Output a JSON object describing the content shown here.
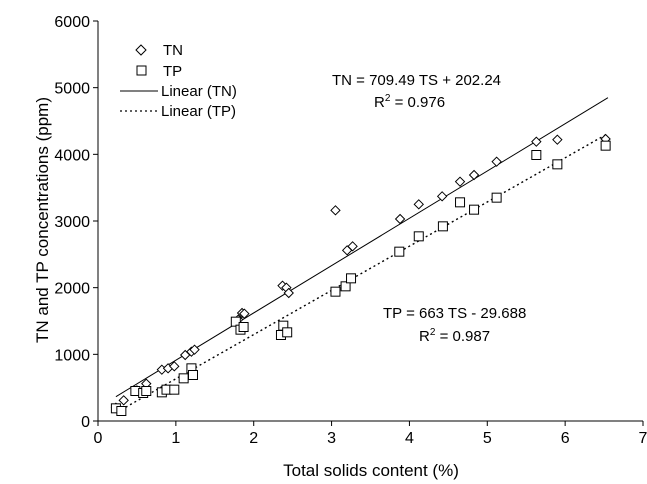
{
  "chart_data": {
    "type": "scatter",
    "xlabel": "Total solids content (%)",
    "ylabel": "TN and TP concentrations (ppm)",
    "xlim": [
      0,
      7
    ],
    "ylim": [
      0,
      6000
    ],
    "x_ticks": [
      "0",
      "1",
      "2",
      "3",
      "4",
      "5",
      "6",
      "7"
    ],
    "y_ticks": [
      "0",
      "1000",
      "2000",
      "3000",
      "4000",
      "5000",
      "6000"
    ],
    "grid": false,
    "legend_position": "top-left",
    "legend": {
      "tn": "TN",
      "tp": "TP",
      "linear_tn": "Linear (TN)",
      "linear_tp": "Linear (TP)"
    },
    "series": [
      {
        "name": "TN",
        "marker": "diamond",
        "points": [
          [
            0.23,
            200
          ],
          [
            0.33,
            310
          ],
          [
            0.5,
            460
          ],
          [
            0.62,
            560
          ],
          [
            0.82,
            770
          ],
          [
            0.9,
            790
          ],
          [
            0.98,
            820
          ],
          [
            1.12,
            990
          ],
          [
            1.2,
            1040
          ],
          [
            1.24,
            1070
          ],
          [
            1.8,
            1520
          ],
          [
            1.85,
            1620
          ],
          [
            1.88,
            1610
          ],
          [
            2.37,
            2030
          ],
          [
            2.42,
            2000
          ],
          [
            2.45,
            1920
          ],
          [
            3.05,
            3160
          ],
          [
            3.2,
            2560
          ],
          [
            3.27,
            2620
          ],
          [
            3.88,
            3030
          ],
          [
            4.12,
            3250
          ],
          [
            4.42,
            3370
          ],
          [
            4.65,
            3590
          ],
          [
            4.83,
            3690
          ],
          [
            5.12,
            3890
          ],
          [
            5.63,
            4190
          ],
          [
            5.9,
            4220
          ],
          [
            6.52,
            4230
          ]
        ]
      },
      {
        "name": "TP",
        "marker": "square",
        "points": [
          [
            0.23,
            190
          ],
          [
            0.3,
            150
          ],
          [
            0.48,
            450
          ],
          [
            0.58,
            420
          ],
          [
            0.62,
            450
          ],
          [
            0.82,
            430
          ],
          [
            0.88,
            470
          ],
          [
            0.98,
            470
          ],
          [
            1.1,
            640
          ],
          [
            1.2,
            790
          ],
          [
            1.22,
            690
          ],
          [
            1.77,
            1490
          ],
          [
            1.83,
            1370
          ],
          [
            1.87,
            1410
          ],
          [
            2.35,
            1290
          ],
          [
            2.38,
            1430
          ],
          [
            2.43,
            1330
          ],
          [
            3.05,
            1940
          ],
          [
            3.18,
            2020
          ],
          [
            3.25,
            2140
          ],
          [
            3.87,
            2540
          ],
          [
            4.12,
            2770
          ],
          [
            4.43,
            2920
          ],
          [
            4.65,
            3280
          ],
          [
            4.83,
            3170
          ],
          [
            5.12,
            3350
          ],
          [
            5.63,
            3990
          ],
          [
            5.9,
            3850
          ],
          [
            6.52,
            4130
          ]
        ]
      },
      {
        "name": "Linear (TN)",
        "type": "line",
        "style": "solid",
        "slope": 709.49,
        "intercept": 202.24,
        "x_range": [
          0.23,
          6.55
        ]
      },
      {
        "name": "Linear (TP)",
        "type": "line",
        "style": "dotted",
        "slope": 663,
        "intercept": -29.688,
        "x_range": [
          0.3,
          6.55
        ]
      }
    ],
    "annotations": {
      "tn_equation": "TN = 709.49 TS + 202.24",
      "tn_r2_label": "R",
      "tn_r2_exp": "2",
      "tn_r2_value": " = 0.976",
      "tp_equation": "TP = 663 TS - 29.688",
      "tp_r2_label": "R",
      "tp_r2_exp": "2",
      "tp_r2_value": " = 0.987"
    }
  }
}
